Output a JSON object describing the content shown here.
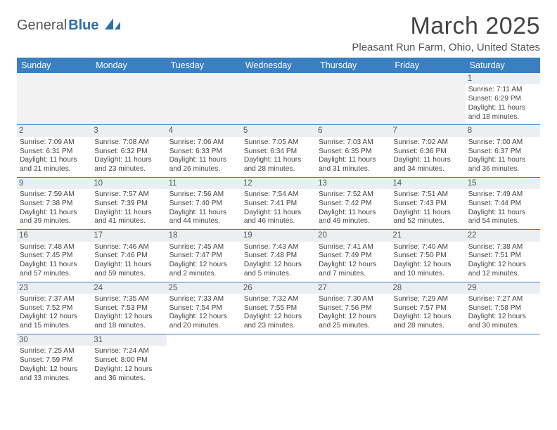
{
  "logo": {
    "part1": "General",
    "part2": "Blue"
  },
  "title": "March 2025",
  "location": "Pleasant Run Farm, Ohio, United States",
  "colors": {
    "header_bg": "#3a80c0",
    "header_text": "#ffffff",
    "border": "#3a80c0",
    "daynum_bg": "#eceff2",
    "empty_bg": "#f2f2f2",
    "logo_blue": "#2f6fa8"
  },
  "weekdays": [
    "Sunday",
    "Monday",
    "Tuesday",
    "Wednesday",
    "Thursday",
    "Friday",
    "Saturday"
  ],
  "days": {
    "1": {
      "sunrise": "7:11 AM",
      "sunset": "6:29 PM",
      "daylight": "11 hours and 18 minutes."
    },
    "2": {
      "sunrise": "7:09 AM",
      "sunset": "6:31 PM",
      "daylight": "11 hours and 21 minutes."
    },
    "3": {
      "sunrise": "7:08 AM",
      "sunset": "6:32 PM",
      "daylight": "11 hours and 23 minutes."
    },
    "4": {
      "sunrise": "7:06 AM",
      "sunset": "6:33 PM",
      "daylight": "11 hours and 26 minutes."
    },
    "5": {
      "sunrise": "7:05 AM",
      "sunset": "6:34 PM",
      "daylight": "11 hours and 28 minutes."
    },
    "6": {
      "sunrise": "7:03 AM",
      "sunset": "6:35 PM",
      "daylight": "11 hours and 31 minutes."
    },
    "7": {
      "sunrise": "7:02 AM",
      "sunset": "6:36 PM",
      "daylight": "11 hours and 34 minutes."
    },
    "8": {
      "sunrise": "7:00 AM",
      "sunset": "6:37 PM",
      "daylight": "11 hours and 36 minutes."
    },
    "9": {
      "sunrise": "7:59 AM",
      "sunset": "7:38 PM",
      "daylight": "11 hours and 39 minutes."
    },
    "10": {
      "sunrise": "7:57 AM",
      "sunset": "7:39 PM",
      "daylight": "11 hours and 41 minutes."
    },
    "11": {
      "sunrise": "7:56 AM",
      "sunset": "7:40 PM",
      "daylight": "11 hours and 44 minutes."
    },
    "12": {
      "sunrise": "7:54 AM",
      "sunset": "7:41 PM",
      "daylight": "11 hours and 46 minutes."
    },
    "13": {
      "sunrise": "7:52 AM",
      "sunset": "7:42 PM",
      "daylight": "11 hours and 49 minutes."
    },
    "14": {
      "sunrise": "7:51 AM",
      "sunset": "7:43 PM",
      "daylight": "11 hours and 52 minutes."
    },
    "15": {
      "sunrise": "7:49 AM",
      "sunset": "7:44 PM",
      "daylight": "11 hours and 54 minutes."
    },
    "16": {
      "sunrise": "7:48 AM",
      "sunset": "7:45 PM",
      "daylight": "11 hours and 57 minutes."
    },
    "17": {
      "sunrise": "7:46 AM",
      "sunset": "7:46 PM",
      "daylight": "11 hours and 59 minutes."
    },
    "18": {
      "sunrise": "7:45 AM",
      "sunset": "7:47 PM",
      "daylight": "12 hours and 2 minutes."
    },
    "19": {
      "sunrise": "7:43 AM",
      "sunset": "7:48 PM",
      "daylight": "12 hours and 5 minutes."
    },
    "20": {
      "sunrise": "7:41 AM",
      "sunset": "7:49 PM",
      "daylight": "12 hours and 7 minutes."
    },
    "21": {
      "sunrise": "7:40 AM",
      "sunset": "7:50 PM",
      "daylight": "12 hours and 10 minutes."
    },
    "22": {
      "sunrise": "7:38 AM",
      "sunset": "7:51 PM",
      "daylight": "12 hours and 12 minutes."
    },
    "23": {
      "sunrise": "7:37 AM",
      "sunset": "7:52 PM",
      "daylight": "12 hours and 15 minutes."
    },
    "24": {
      "sunrise": "7:35 AM",
      "sunset": "7:53 PM",
      "daylight": "12 hours and 18 minutes."
    },
    "25": {
      "sunrise": "7:33 AM",
      "sunset": "7:54 PM",
      "daylight": "12 hours and 20 minutes."
    },
    "26": {
      "sunrise": "7:32 AM",
      "sunset": "7:55 PM",
      "daylight": "12 hours and 23 minutes."
    },
    "27": {
      "sunrise": "7:30 AM",
      "sunset": "7:56 PM",
      "daylight": "12 hours and 25 minutes."
    },
    "28": {
      "sunrise": "7:29 AM",
      "sunset": "7:57 PM",
      "daylight": "12 hours and 28 minutes."
    },
    "29": {
      "sunrise": "7:27 AM",
      "sunset": "7:58 PM",
      "daylight": "12 hours and 30 minutes."
    },
    "30": {
      "sunrise": "7:25 AM",
      "sunset": "7:59 PM",
      "daylight": "12 hours and 33 minutes."
    },
    "31": {
      "sunrise": "7:24 AM",
      "sunset": "8:00 PM",
      "daylight": "12 hours and 36 minutes."
    }
  },
  "labels": {
    "sunrise": "Sunrise:",
    "sunset": "Sunset:",
    "daylight": "Daylight:"
  },
  "grid": [
    [
      null,
      null,
      null,
      null,
      null,
      null,
      "1"
    ],
    [
      "2",
      "3",
      "4",
      "5",
      "6",
      "7",
      "8"
    ],
    [
      "9",
      "10",
      "11",
      "12",
      "13",
      "14",
      "15"
    ],
    [
      "16",
      "17",
      "18",
      "19",
      "20",
      "21",
      "22"
    ],
    [
      "23",
      "24",
      "25",
      "26",
      "27",
      "28",
      "29"
    ],
    [
      "30",
      "31",
      null,
      null,
      null,
      null,
      null
    ]
  ]
}
